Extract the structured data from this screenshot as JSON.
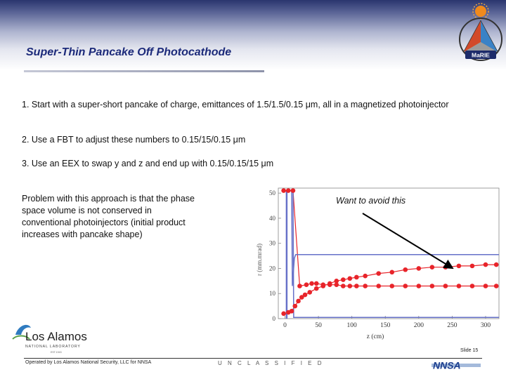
{
  "slide": {
    "title": "Super-Thin Pancake Off Photocathode",
    "bullets": [
      "1.  Start with a super-short pancake of charge, emittances of 1.5/1.5/0.15 μm, all in a magnetized photoinjector",
      "2.  Use a FBT to adjust these numbers to 0.15/15/0.15 μm",
      "3.  Use an EEX to swap y and z and end up with 0.15/0.15/15 μm"
    ],
    "problem_text": "Problem with this approach is that the phase space volume is not conserved in conventional photoinjectors (initial product increases with pancake shape)",
    "callout": "Want to avoid this"
  },
  "footer": {
    "operator": "Operated by Los Alamos National Security, LLC for NNSA",
    "classification": "U N C L A S S I F I E D",
    "slide_number": "Slide 15"
  },
  "logos": {
    "marie_text": "MaRIE",
    "la_main": "Los Alamos",
    "la_sub": "NATIONAL LABORATORY",
    "la_est": "EST.1943",
    "nnsa_text": "NNSA"
  },
  "colors": {
    "title": "#1c2a7a",
    "red_points": "#e8242a",
    "blue_line": "#6670c8"
  },
  "chart_data": {
    "type": "scatter",
    "xlabel": "z (cm)",
    "ylabel": "r (mm.mrad)",
    "xlim": [
      -10,
      320
    ],
    "ylim": [
      0,
      52
    ],
    "xticks": [
      0,
      50,
      100,
      150,
      200,
      250,
      300
    ],
    "yticks": [
      0,
      10,
      20,
      30,
      40,
      50
    ],
    "series": [
      {
        "values_x": [
          -2,
          5,
          10,
          15,
          20,
          25,
          30,
          37,
          47,
          57,
          67,
          77,
          87,
          97,
          107,
          120,
          140,
          160,
          180,
          200,
          220,
          240,
          260,
          280,
          300,
          316
        ],
        "values_y": [
          2,
          2.5,
          3,
          5,
          7,
          8.5,
          9.5,
          10.5,
          12,
          13,
          14,
          15,
          15.5,
          16,
          16.5,
          17,
          18,
          18.5,
          19.5,
          20,
          20.5,
          20.5,
          21,
          21,
          21.5,
          21.5
        ]
      },
      {
        "values_x": [
          -2,
          5,
          12,
          22,
          32,
          40,
          47,
          57,
          67,
          77,
          87,
          97,
          107,
          120,
          140,
          160,
          180,
          200,
          220,
          240,
          260,
          280,
          300,
          316
        ],
        "values_y": [
          51,
          51,
          51,
          13,
          13.5,
          14,
          14,
          13.5,
          13.5,
          13.5,
          13,
          13,
          13,
          13,
          13,
          13,
          13,
          13,
          13,
          13,
          13,
          13,
          13,
          13
        ]
      },
      {
        "values_x": [
          3,
          3,
          10,
          11,
          14,
          16,
          19,
          330
        ],
        "values_y": [
          0,
          51,
          51,
          13,
          24,
          25.5,
          25.5,
          25.5
        ]
      },
      {
        "values_x": [
          2,
          2,
          12,
          13,
          15,
          330
        ],
        "values_y": [
          0,
          51,
          51,
          0.5,
          0.5,
          0.5
        ]
      }
    ],
    "callout_arrow_target": [
      253,
      19
    ]
  }
}
